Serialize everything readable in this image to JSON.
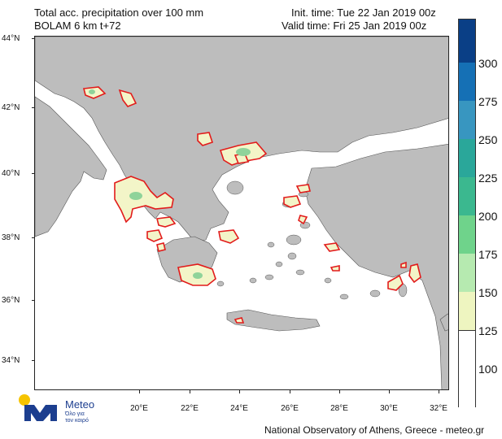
{
  "header": {
    "title_line1": "Total acc. precipitation over 100 mm",
    "title_line2": "BOLAM 6 km t+72",
    "init_time": "Init. time: Tue 22 Jan 2019 00z",
    "valid_time": "Valid time: Fri 25 Jan 2019 00z"
  },
  "axes": {
    "lat_labels": [
      "44°N",
      "42°N",
      "40°N",
      "38°N",
      "36°N",
      "34°N"
    ],
    "lon_labels": [
      "20°E",
      "22°E",
      "24°E",
      "26°E",
      "28°E",
      "30°E",
      "32°E"
    ]
  },
  "colorbar": {
    "labels": [
      "300",
      "275",
      "250",
      "225",
      "200",
      "175",
      "150",
      "125",
      "100"
    ],
    "colors": [
      "#0a3f86",
      "#1570b5",
      "#3896c0",
      "#2aa79a",
      "#3bb88f",
      "#6fd38b",
      "#b6eab0",
      "#eef5c0",
      "#ffffff"
    ]
  },
  "logo": {
    "name": "Meteo",
    "tagline_line1": "Όλο για",
    "tagline_line2": "τον καιρό"
  },
  "footer": "National Observatory of Athens, Greece - meteo.gr",
  "colors": {
    "land": "#bdbdbd",
    "sea": "#ffffff",
    "precip_fill": "#f3f5c8",
    "precip_contour": "#e21b1b",
    "precip_core": "#8fd39a"
  }
}
